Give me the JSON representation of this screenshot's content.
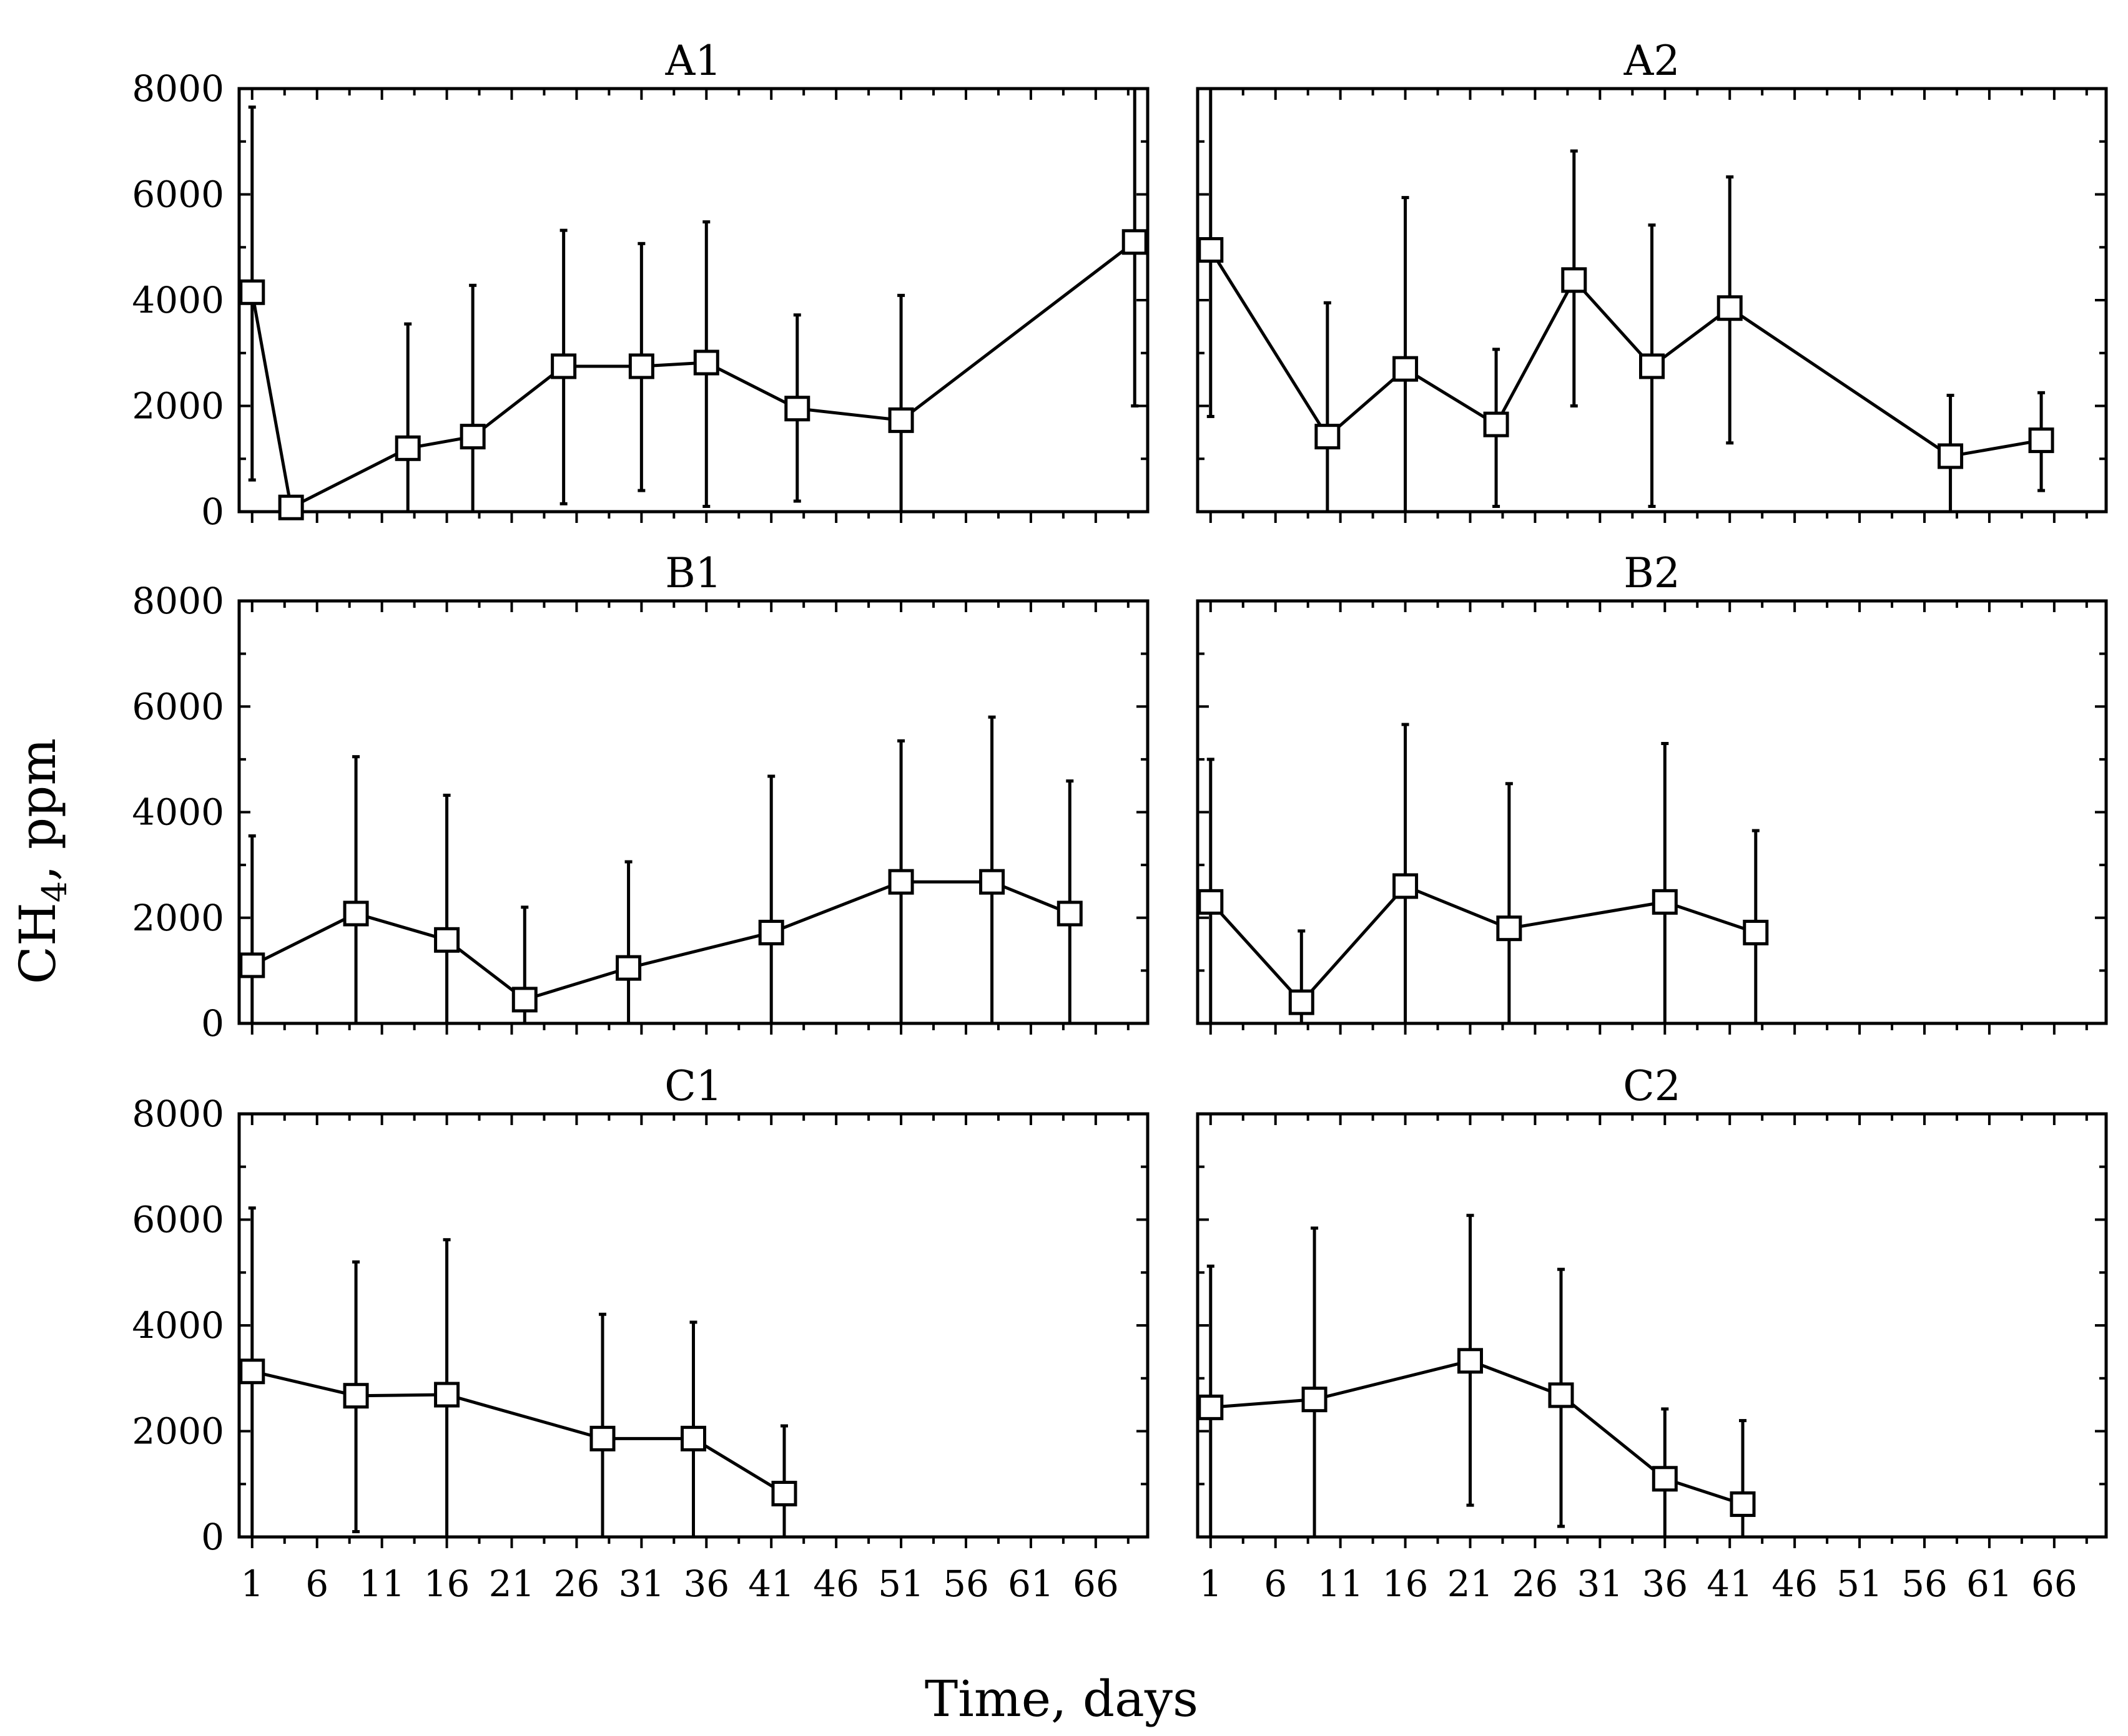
{
  "figure": {
    "ylabel_main": "CH",
    "ylabel_sub": "4",
    "ylabel_rest": ", ppm",
    "xlabel": "Time, days"
  },
  "colors": {
    "ink": "#000000",
    "background": "#ffffff"
  },
  "chart_data": [
    {
      "type": "line",
      "title": "A1",
      "xlabel": "Time, days",
      "ylabel": "CH4, ppm",
      "xlim": [
        0,
        70
      ],
      "ylim": [
        0,
        8000
      ],
      "x_ticks": [
        1,
        6,
        11,
        16,
        21,
        26,
        31,
        36,
        41,
        46,
        51,
        56,
        61,
        66
      ],
      "y_ticks": [
        0,
        2000,
        4000,
        6000,
        8000
      ],
      "grid": false,
      "series": [
        {
          "name": "A1",
          "marker": "open-square",
          "x": [
            1,
            4,
            13,
            18,
            25,
            31,
            36,
            43,
            51,
            69
          ],
          "y": [
            4150,
            80,
            1200,
            1420,
            2750,
            2750,
            2820,
            1950,
            1730,
            5100
          ],
          "err_low": [
            600,
            0,
            0,
            0,
            150,
            400,
            100,
            200,
            0,
            2000
          ],
          "err_high": [
            7650,
            0,
            3550,
            4280,
            5320,
            5070,
            5480,
            3720,
            4090,
            8000
          ]
        }
      ]
    },
    {
      "type": "line",
      "title": "A2",
      "xlabel": "Time, days",
      "ylabel": "CH4, ppm",
      "xlim": [
        0,
        70
      ],
      "ylim": [
        0,
        8000
      ],
      "x_ticks": [
        1,
        6,
        11,
        16,
        21,
        26,
        31,
        36,
        41,
        46,
        51,
        56,
        61,
        66
      ],
      "y_ticks": [
        0,
        2000,
        4000,
        6000,
        8000
      ],
      "grid": false,
      "series": [
        {
          "name": "A2",
          "marker": "open-square",
          "x": [
            1,
            10,
            16,
            23,
            29,
            35,
            41,
            58,
            65
          ],
          "y": [
            4950,
            1420,
            2700,
            1650,
            4380,
            2750,
            3850,
            1050,
            1350
          ],
          "err_low": [
            1800,
            0,
            0,
            100,
            2000,
            100,
            1300,
            0,
            400
          ],
          "err_high": [
            8000,
            3950,
            5940,
            3070,
            6820,
            5420,
            6330,
            2200,
            2250
          ]
        }
      ]
    },
    {
      "type": "line",
      "title": "B1",
      "xlabel": "Time, days",
      "ylabel": "CH4, ppm",
      "xlim": [
        0,
        70
      ],
      "ylim": [
        0,
        8000
      ],
      "x_ticks": [
        1,
        6,
        11,
        16,
        21,
        26,
        31,
        36,
        41,
        46,
        51,
        56,
        61,
        66
      ],
      "y_ticks": [
        0,
        2000,
        4000,
        6000,
        8000
      ],
      "grid": false,
      "series": [
        {
          "name": "B1",
          "marker": "open-square",
          "x": [
            1,
            9,
            16,
            22,
            30,
            41,
            51,
            58,
            64
          ],
          "y": [
            1100,
            2080,
            1580,
            450,
            1050,
            1720,
            2680,
            2680,
            2080
          ],
          "err_low": [
            0,
            0,
            0,
            0,
            0,
            0,
            0,
            0,
            0
          ],
          "err_high": [
            3550,
            5050,
            4320,
            2200,
            3060,
            4680,
            5350,
            5800,
            4590
          ]
        }
      ]
    },
    {
      "type": "line",
      "title": "B2",
      "xlabel": "Time, days",
      "ylabel": "CH4, ppm",
      "xlim": [
        0,
        70
      ],
      "ylim": [
        0,
        8000
      ],
      "x_ticks": [
        1,
        6,
        11,
        16,
        21,
        26,
        31,
        36,
        41,
        46,
        51,
        56,
        61,
        66
      ],
      "y_ticks": [
        0,
        2000,
        4000,
        6000,
        8000
      ],
      "grid": false,
      "series": [
        {
          "name": "B2",
          "marker": "open-square",
          "x": [
            1,
            8,
            16,
            24,
            36,
            43
          ],
          "y": [
            2300,
            400,
            2600,
            1800,
            2300,
            1720
          ],
          "err_low": [
            0,
            0,
            0,
            0,
            0,
            0
          ],
          "err_high": [
            5000,
            1750,
            5660,
            4540,
            5300,
            3650
          ]
        }
      ]
    },
    {
      "type": "line",
      "title": "C1",
      "xlabel": "Time, days",
      "ylabel": "CH4, ppm",
      "xlim": [
        0,
        70
      ],
      "ylim": [
        0,
        8000
      ],
      "x_ticks": [
        1,
        6,
        11,
        16,
        21,
        26,
        31,
        36,
        41,
        46,
        51,
        56,
        61,
        66
      ],
      "y_ticks": [
        0,
        2000,
        4000,
        6000,
        8000
      ],
      "grid": false,
      "series": [
        {
          "name": "C1",
          "marker": "open-square",
          "x": [
            1,
            9,
            16,
            28,
            35,
            42
          ],
          "y": [
            3130,
            2670,
            2690,
            1860,
            1860,
            820
          ],
          "err_low": [
            0,
            100,
            0,
            0,
            0,
            0
          ],
          "err_high": [
            6220,
            5200,
            5620,
            4210,
            4060,
            2100
          ]
        }
      ]
    },
    {
      "type": "line",
      "title": "C2",
      "xlabel": "Time, days",
      "ylabel": "CH4, ppm",
      "xlim": [
        0,
        70
      ],
      "ylim": [
        0,
        8000
      ],
      "x_ticks": [
        1,
        6,
        11,
        16,
        21,
        26,
        31,
        36,
        41,
        46,
        51,
        56,
        61,
        66
      ],
      "y_ticks": [
        0,
        2000,
        4000,
        6000,
        8000
      ],
      "grid": false,
      "series": [
        {
          "name": "C2",
          "marker": "open-square",
          "x": [
            1,
            9,
            21,
            28,
            36,
            42
          ],
          "y": [
            2450,
            2600,
            3330,
            2680,
            1100,
            620
          ],
          "err_low": [
            0,
            0,
            600,
            200,
            0,
            0
          ],
          "err_high": [
            5120,
            5840,
            6080,
            5060,
            2420,
            2200
          ]
        }
      ]
    }
  ]
}
